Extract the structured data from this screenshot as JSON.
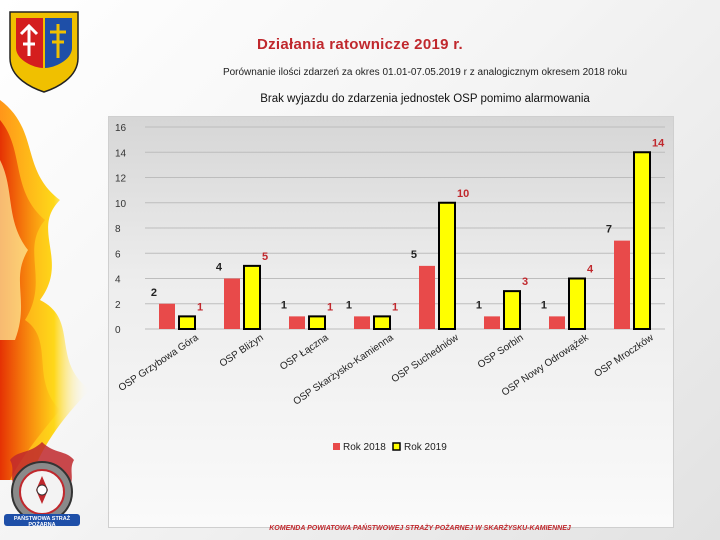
{
  "header": {
    "title": "Działania ratownicze 2019 r.",
    "subtitle": "Porównanie ilości zdarzeń za okres 01.01-07.05.2019 r z analogicznym okresem 2018 roku"
  },
  "footer": {
    "text": "KOMENDA POWIATOWA PAŃSTWOWEJ STRAŻY POŻARNEJ W SKARŻYSKU-KAMIENNEJ"
  },
  "emblem": {
    "text": "PAŃSTWOWA STRAŻ POŻARNA"
  },
  "colors": {
    "title": "#c0282d",
    "series_2018": "#e84a4a",
    "series_2019": "#ffff00",
    "bar_outline_2019": "#000000"
  },
  "chart_data": {
    "type": "bar",
    "title": "Brak wyjazdu do zdarzenia jednostek OSP pomimo alarmowania",
    "categories": [
      "OSP Grzybowa Góra",
      "OSP Bliżyn",
      "OSP Łączna",
      "OSP Skarżysko-Kamienna",
      "OSP Suchedniów",
      "OSP Sorbin",
      "OSP Nowy Odrowążek",
      "OSP Mroczków"
    ],
    "series": [
      {
        "name": "Rok 2018",
        "values": [
          2,
          4,
          1,
          1,
          5,
          1,
          1,
          7
        ]
      },
      {
        "name": "Rok 2019",
        "values": [
          1,
          5,
          1,
          1,
          10,
          3,
          4,
          14
        ]
      }
    ],
    "y_ticks": [
      "0",
      "2",
      "4",
      "6",
      "8",
      "10",
      "12",
      "14",
      "16"
    ],
    "ylim": [
      0,
      16
    ],
    "grid": true,
    "legend": "bottom"
  }
}
